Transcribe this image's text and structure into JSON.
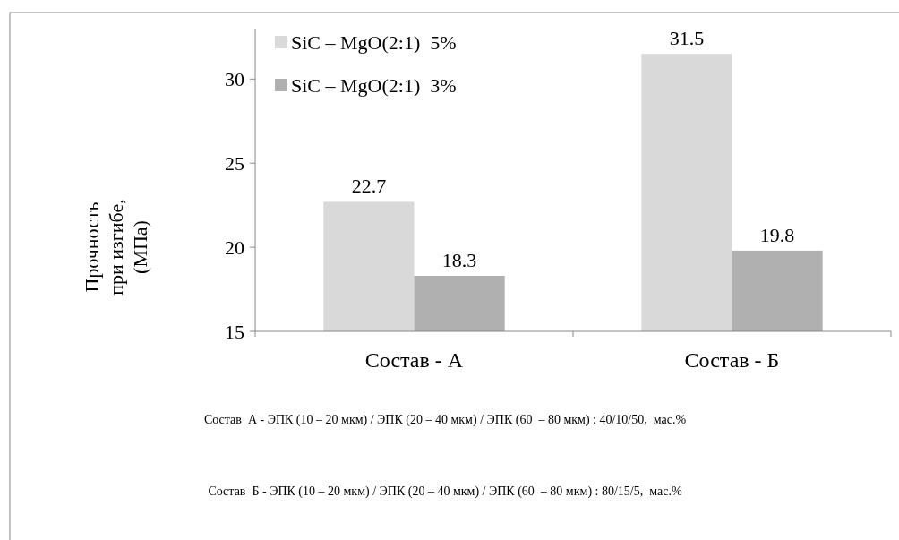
{
  "chart_data": {
    "type": "bar",
    "ylabel": "Прочность при изгибе, (МПа)",
    "categories": [
      "Состав - А",
      "Состав - Б"
    ],
    "series": [
      {
        "name": "SiC – MgO(2:1)  5%",
        "color": "#d9d9d9",
        "values": [
          22.7,
          31.5
        ]
      },
      {
        "name": "SiC – MgO(2:1)  3%",
        "color": "#b0b0b0",
        "values": [
          18.3,
          19.8
        ]
      }
    ],
    "ylim": [
      15,
      33
    ],
    "yticks": [
      15,
      20,
      25,
      30
    ],
    "data_labels": true,
    "legend": "top left",
    "grid": false,
    "annotations": [
      "Состав  А - ЭПК (10 – 20 мкм) / ЭПК (20 – 40 мкм) / ЭПК (60  – 80 мкм) : 40/10/50,  мас.%",
      "Состав  Б - ЭПК (10 – 20 мкм) / ЭПК (20 – 40 мкм) / ЭПК (60  – 80 мкм) : 80/15/5,  мас.%"
    ]
  }
}
